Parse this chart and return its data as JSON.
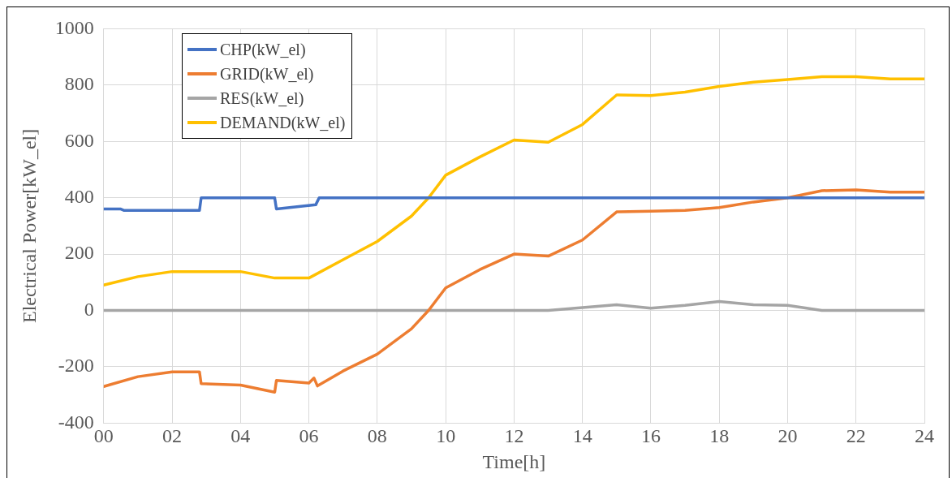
{
  "chart_data": {
    "type": "line",
    "xlabel": "Time[h]",
    "ylabel": "Electrical Power[kW_el]",
    "xlim": [
      0,
      24
    ],
    "xticks": [
      {
        "value": 0,
        "label": "00"
      },
      {
        "value": 2,
        "label": "02"
      },
      {
        "value": 4,
        "label": "04"
      },
      {
        "value": 6,
        "label": "06"
      },
      {
        "value": 8,
        "label": "08"
      },
      {
        "value": 10,
        "label": "10"
      },
      {
        "value": 12,
        "label": "12"
      },
      {
        "value": 14,
        "label": "14"
      },
      {
        "value": 16,
        "label": "16"
      },
      {
        "value": 18,
        "label": "18"
      },
      {
        "value": 20,
        "label": "20"
      },
      {
        "value": 22,
        "label": "22"
      },
      {
        "value": 24,
        "label": "24"
      }
    ],
    "ylim": [
      -400,
      1000
    ],
    "yticks": [
      -400,
      -200,
      0,
      200,
      400,
      600,
      800,
      1000
    ],
    "grid": true,
    "legend": "top left",
    "marker": "none",
    "line_style": "solid",
    "series": [
      {
        "name": "CHP(kW_el)",
        "color": "#4472c4",
        "x": [
          0,
          0.5,
          0.6,
          2.8,
          2.85,
          5.0,
          5.05,
          6.2,
          6.3,
          24
        ],
        "values": [
          360,
          360,
          355,
          355,
          400,
          400,
          360,
          375,
          400,
          400
        ]
      },
      {
        "name": "GRID(kW_el)",
        "color": "#ed7d31",
        "x": [
          0,
          1,
          2,
          2.8,
          2.85,
          4,
          5.0,
          5.05,
          6.0,
          6.15,
          6.25,
          7,
          8,
          9,
          9.5,
          10,
          11,
          12,
          13,
          14,
          15,
          16,
          17,
          18,
          19,
          20,
          21,
          22,
          23,
          24
        ],
        "values": [
          -270,
          -235,
          -218,
          -218,
          -260,
          -265,
          -290,
          -248,
          -258,
          -240,
          -268,
          -215,
          -155,
          -65,
          0,
          80,
          145,
          200,
          193,
          250,
          350,
          352,
          355,
          365,
          385,
          400,
          425,
          428,
          420,
          420
        ]
      },
      {
        "name": "RES(kW_el)",
        "color": "#a5a5a5",
        "x": [
          0,
          13,
          14,
          15,
          16,
          17,
          18,
          19,
          20,
          21,
          24
        ],
        "values": [
          0,
          0,
          10,
          20,
          8,
          18,
          32,
          20,
          18,
          0,
          0
        ]
      },
      {
        "name": "DEMAND(kW_el)",
        "color": "#ffc000",
        "x": [
          0,
          1,
          2,
          4,
          5,
          6,
          7,
          8,
          9,
          9.5,
          10,
          11,
          12,
          13,
          14,
          15,
          16,
          17,
          18,
          19,
          20,
          21,
          22,
          23,
          24
        ],
        "values": [
          90,
          120,
          138,
          138,
          115,
          115,
          180,
          245,
          335,
          400,
          480,
          545,
          605,
          597,
          660,
          765,
          763,
          775,
          795,
          810,
          820,
          830,
          830,
          822,
          822
        ]
      }
    ]
  }
}
